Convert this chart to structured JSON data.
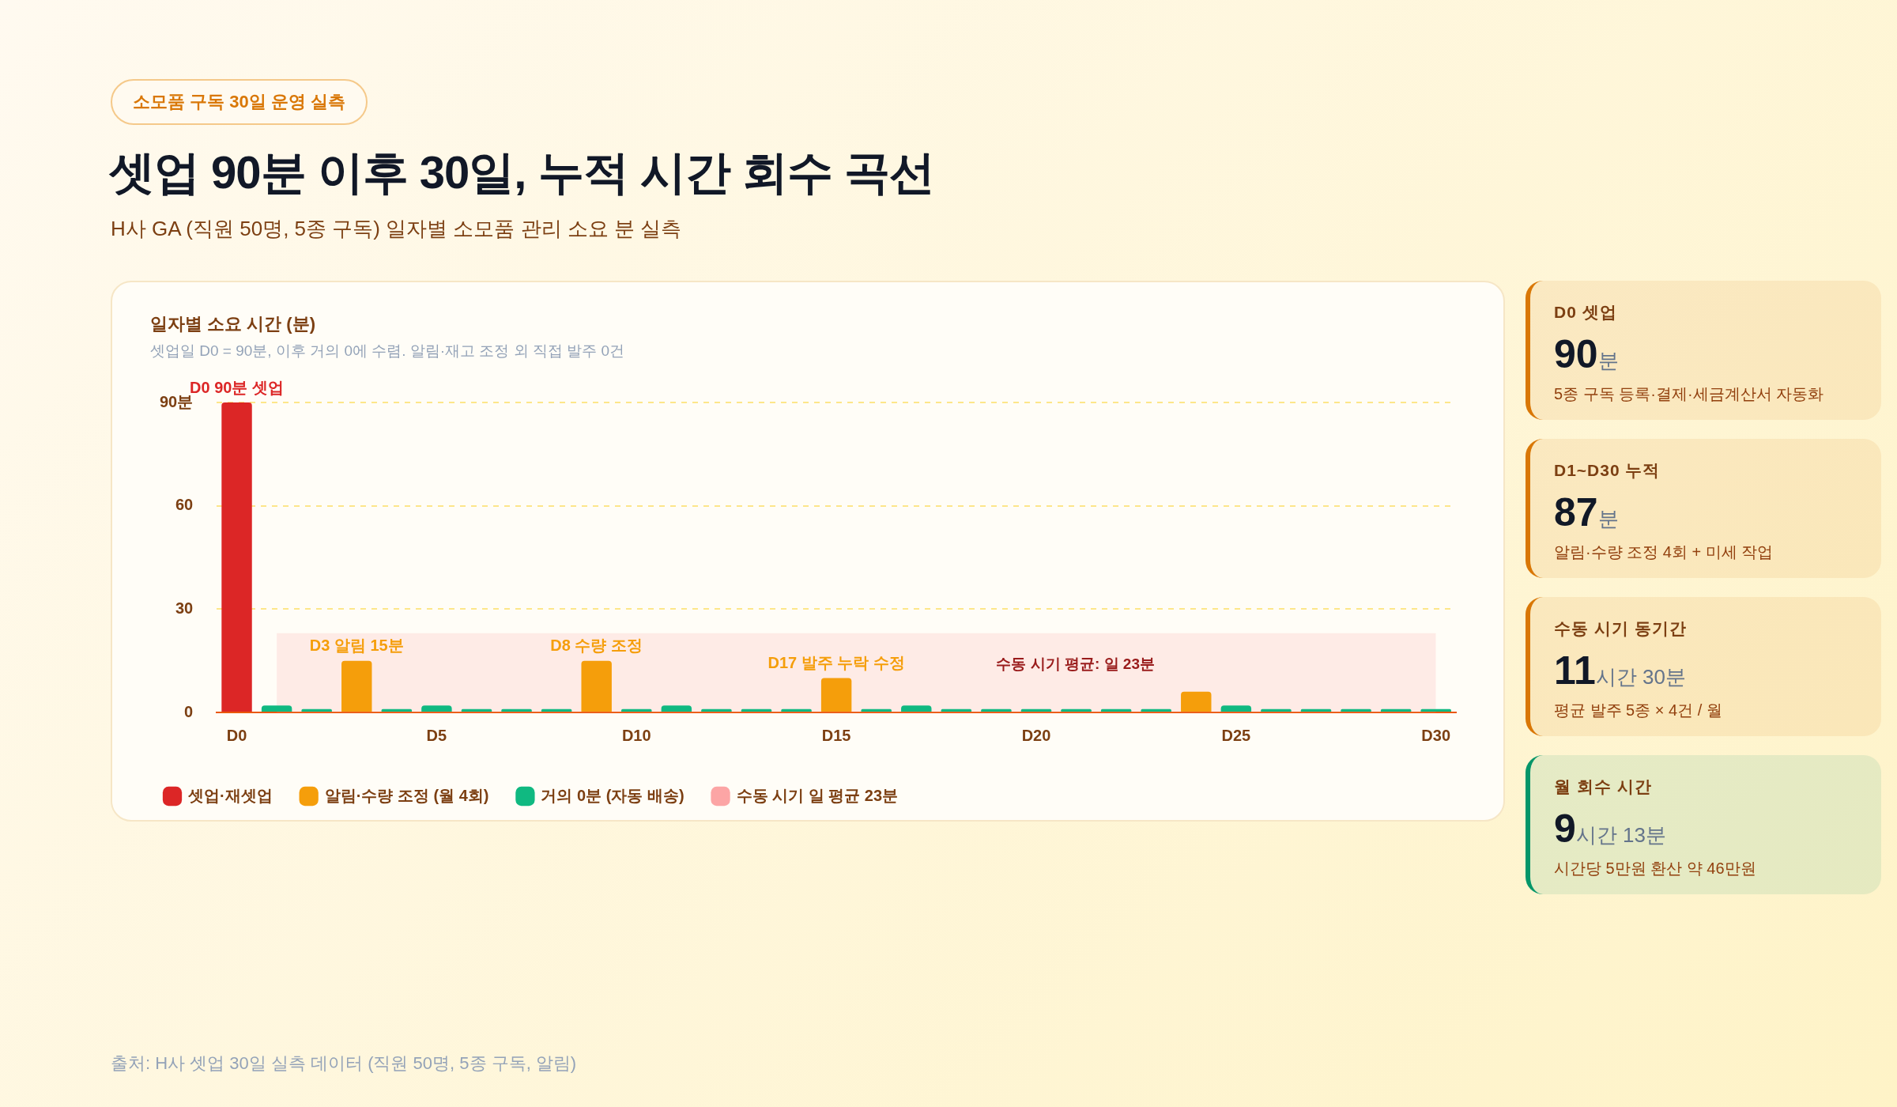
{
  "chart_data": [
    {
      "type": "bar",
      "title": "셋업 90분 이후 30일, 누적 시간 회수 곡선",
      "subtitle": "H사 GA (직원 50명, 5종 구독) 일자별 소모품 관리 소요 분 실측",
      "annotations": [
        "소모품 구독 30일 운영 실측",
        "일자별 소요 시간 (분)",
        "셋업일 D0 = 90분, 이후 거의 0에 수렴. 알림·재고 조정 외 직접 발주 0건",
        "출처: H사 셋업 30일 실측 데이터 (직원 50명, 5종 구독, 알림)",
        "수동 시기 평균: 일 23분"
      ],
      "categories": [
        "D0",
        null,
        null,
        null,
        null,
        "D5",
        null,
        null,
        null,
        null,
        "D10",
        null,
        null,
        null,
        null,
        "D15",
        null,
        null,
        null,
        null,
        "D20",
        null,
        null,
        null,
        null,
        "D25",
        null,
        null,
        null,
        null,
        "D30"
      ],
      "series": [
        {
          "name": "셋업·재셋업",
          "color": "#dc2626",
          "values": [
            90,
            null,
            null,
            null,
            null,
            null,
            null,
            null,
            null,
            null,
            null,
            null,
            null,
            null,
            null,
            null,
            null,
            null,
            null,
            null,
            null,
            null,
            null,
            null,
            null,
            null,
            null,
            null,
            null,
            null,
            null
          ],
          "value_labels": [
            "D0 90분 셋업",
            null,
            null,
            null,
            null,
            null,
            null,
            null,
            null,
            null,
            null,
            null,
            null,
            null,
            null,
            null,
            null,
            null,
            null,
            null,
            null,
            null,
            null,
            null,
            null,
            null,
            null,
            null,
            null,
            null,
            null
          ]
        },
        {
          "name": "알림·수량 조정 (월 4회)",
          "color": "#f59e0b",
          "values": [
            null,
            null,
            null,
            15,
            null,
            null,
            null,
            null,
            null,
            15,
            null,
            null,
            null,
            null,
            null,
            10,
            null,
            null,
            null,
            null,
            null,
            null,
            null,
            null,
            6,
            null,
            null,
            null,
            null,
            null,
            null
          ],
          "value_labels": [
            null,
            null,
            null,
            "D3 알림 15분",
            null,
            null,
            null,
            null,
            null,
            "D8 수량 조정",
            null,
            null,
            null,
            null,
            null,
            "D17 발주 누락 수정",
            null,
            null,
            null,
            null,
            null,
            null,
            null,
            null,
            null,
            null,
            null,
            null,
            null,
            null,
            null
          ]
        },
        {
          "name": "거의 0분 (자동 배송)",
          "color": "#10b981",
          "values": [
            null,
            2,
            1,
            null,
            1,
            2,
            1,
            1,
            1,
            null,
            1,
            2,
            1,
            1,
            1,
            null,
            1,
            2,
            1,
            1,
            1,
            1,
            1,
            1,
            null,
            2,
            1,
            1,
            1,
            1,
            1
          ]
        },
        {
          "name": "수동 시기 일 평균 23분",
          "type": "area",
          "color": "#fca5a5",
          "values": [
            null,
            23,
            23,
            23,
            23,
            23,
            23,
            23,
            23,
            23,
            23,
            23,
            23,
            23,
            23,
            23,
            23,
            23,
            23,
            23,
            23,
            23,
            23,
            23,
            23,
            23,
            23,
            23,
            23,
            23,
            23
          ]
        }
      ],
      "ylim": [
        0,
        90
      ],
      "yticks": [
        0,
        30,
        60,
        {
          "value": 90,
          "label": "90분"
        }
      ],
      "grid": "y",
      "legend": "bottom left"
    },
    {
      "type": "other",
      "categories": [
        "D0 셋업",
        "D1~D30 누적",
        "수동 시기 동기간",
        "월 회수 시간"
      ],
      "value_labels": [
        "90분",
        "87분",
        "11시간 30분",
        "9시간 13분"
      ],
      "colors": [
        "#d97706",
        "#d97706",
        "#d97706",
        "#059669"
      ],
      "annotations": [
        "5종 구독 등록·결제·세금계산서 자동화",
        "알림·수량 조정 4회 + 미세 작업",
        "평균 발주 5종 × 4건 / 월",
        "시간당 5만원 환산 약 46만원"
      ]
    }
  ]
}
